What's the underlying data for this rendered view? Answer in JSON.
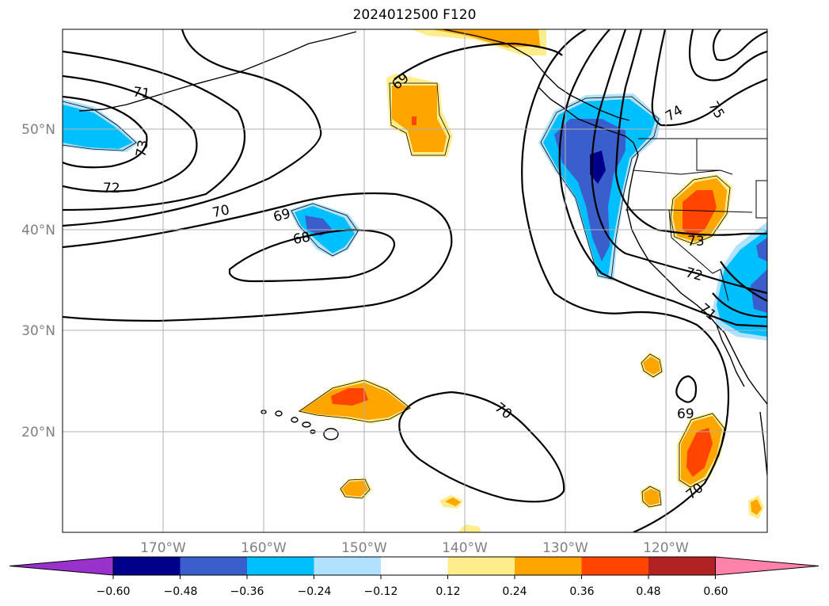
{
  "title": "2024012500 F120",
  "lat_labels": [
    "50°N",
    "40°N",
    "30°N",
    "20°N"
  ],
  "lon_labels": [
    "170°W",
    "160°W",
    "150°W",
    "140°W",
    "130°W",
    "120°W"
  ],
  "colorbar": {
    "labels": [
      "−0.60",
      "−0.48",
      "−0.36",
      "−0.24",
      "−0.12",
      "0.12",
      "0.24",
      "0.36",
      "0.48",
      "0.60"
    ],
    "colors": [
      "#9932cc",
      "#00008b",
      "#3a5fcd",
      "#00bfff",
      "#b0e2ff",
      "#ffffff",
      "#ffec8b",
      "#ffa500",
      "#ff4500",
      "#b22222",
      "#ff82ab"
    ]
  },
  "contour_labels": [
    {
      "text": "71"
    },
    {
      "text": "73"
    },
    {
      "text": "72"
    },
    {
      "text": "70"
    },
    {
      "text": "69"
    },
    {
      "text": "68"
    },
    {
      "text": "69"
    },
    {
      "text": "74"
    },
    {
      "text": "75"
    },
    {
      "text": "73"
    },
    {
      "text": "72"
    },
    {
      "text": "71"
    },
    {
      "text": "70"
    },
    {
      "text": "69"
    },
    {
      "text": "70"
    }
  ]
}
